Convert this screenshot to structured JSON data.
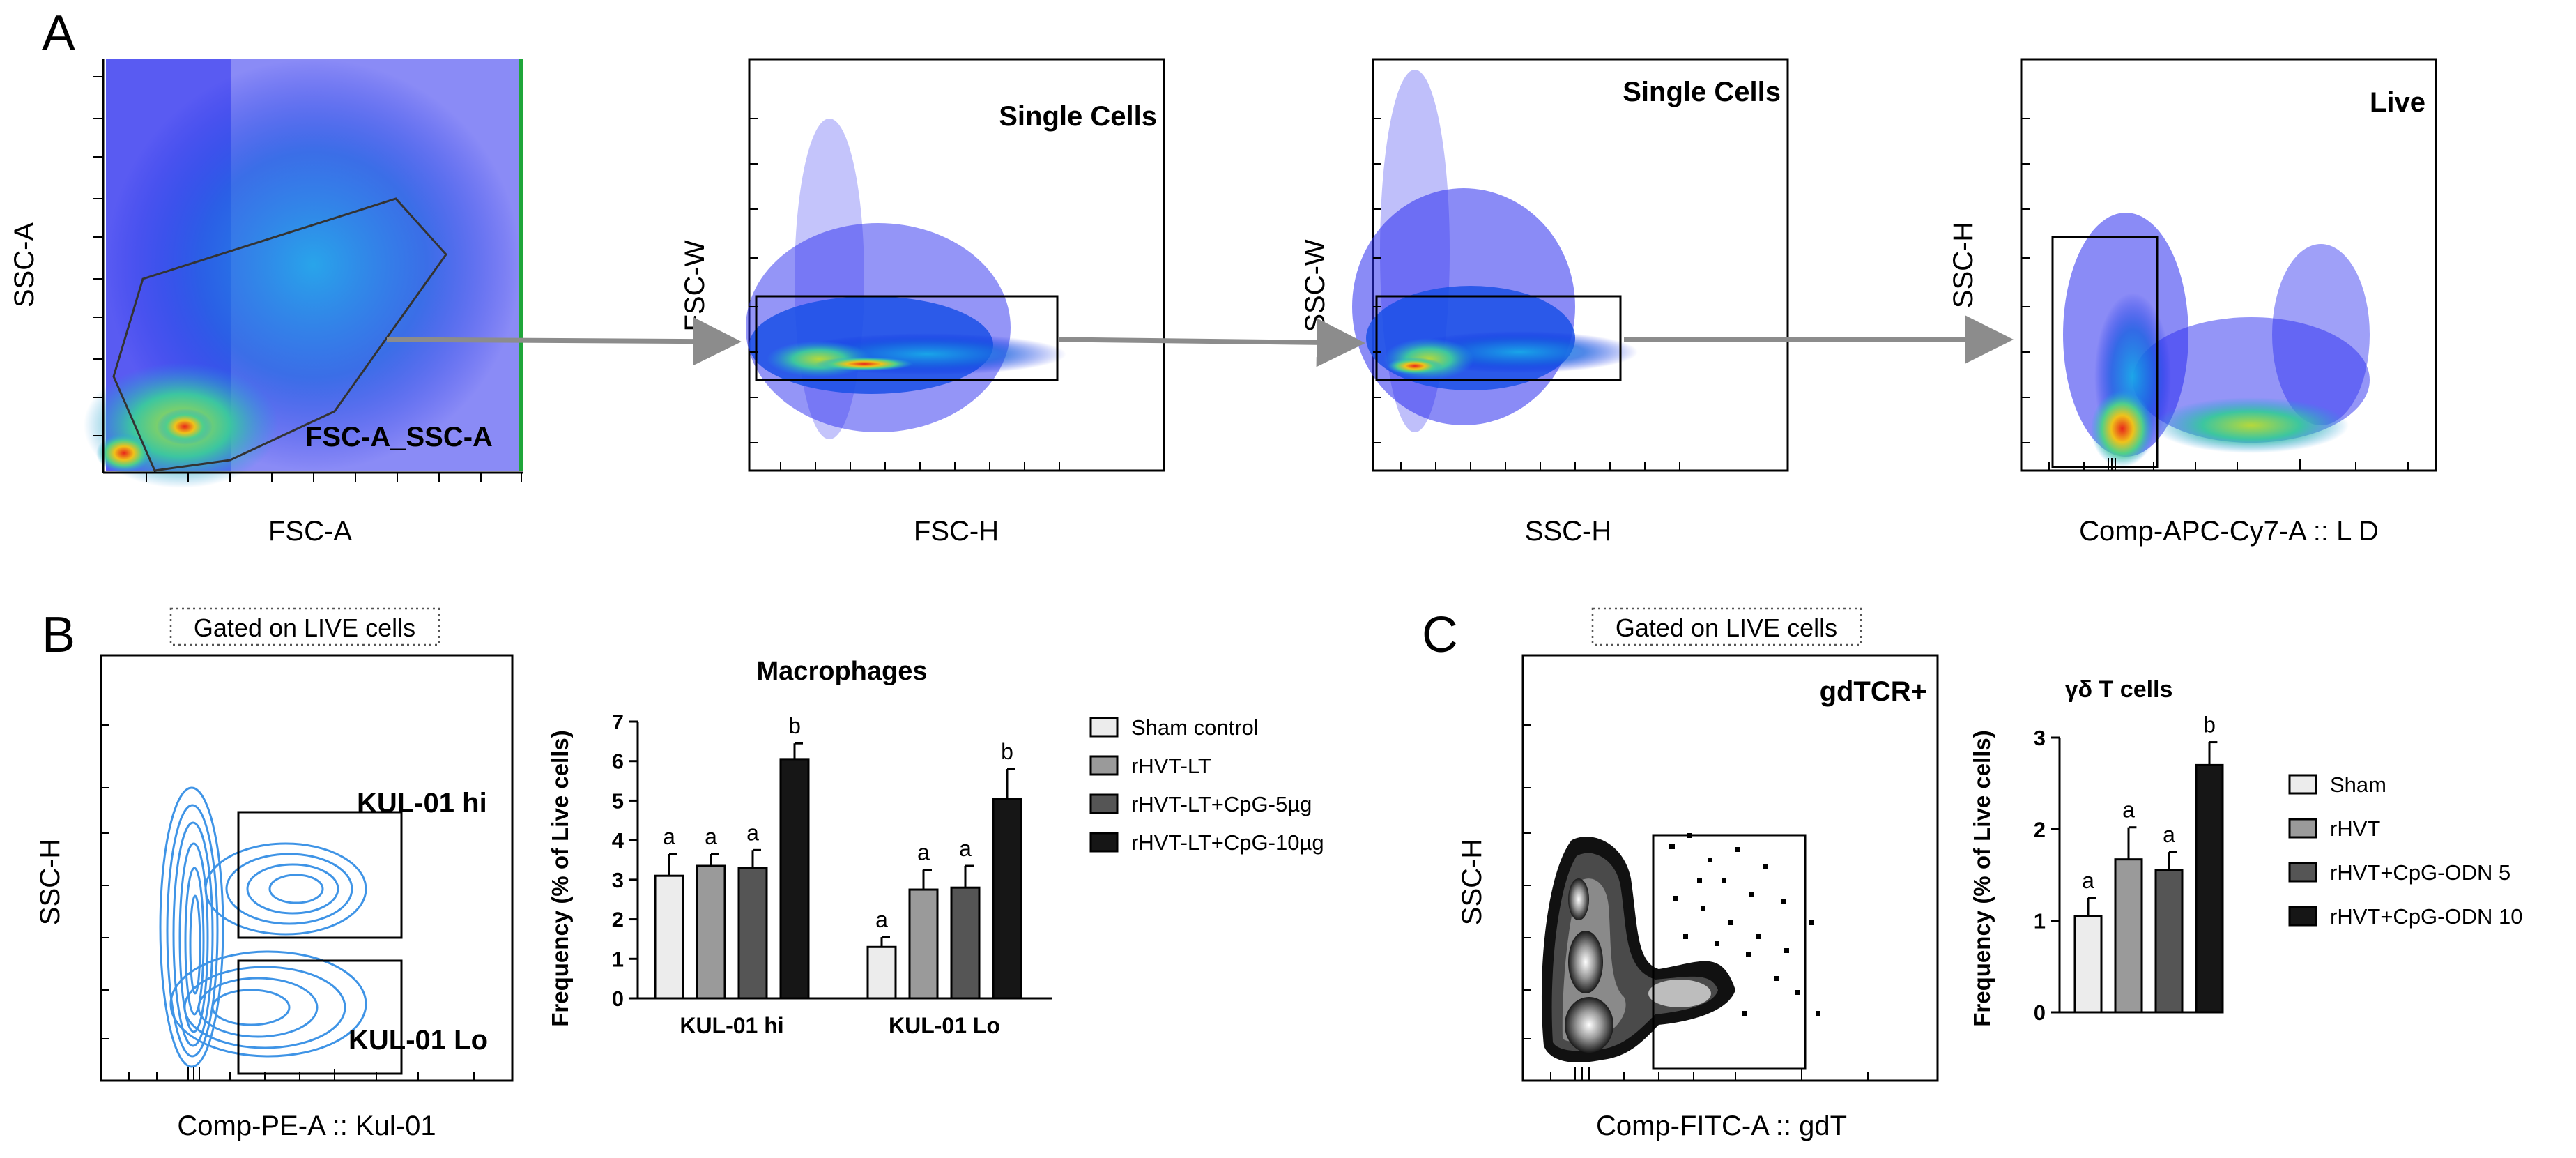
{
  "panel_letters": {
    "a": "A",
    "b": "B",
    "c": "C"
  },
  "panel_a": {
    "plots": [
      {
        "xlabel": "FSC-A",
        "ylabel": "SSC-A",
        "gate_label": "FSC-A_SSC-A"
      },
      {
        "xlabel": "FSC-H",
        "ylabel": "FSC-W",
        "gate_label": "Single Cells"
      },
      {
        "xlabel": "SSC-H",
        "ylabel": "SSC-W",
        "gate_label": "Single Cells"
      },
      {
        "xlabel": "Comp-APC-Cy7-A :: L D",
        "ylabel": "SSC-H",
        "gate_label": "Live"
      }
    ]
  },
  "panel_b": {
    "gated_on": "Gated on LIVE cells",
    "xlabel": "Comp-PE-A :: Kul-01",
    "ylabel": "SSC-H",
    "gate_hi": "KUL-01 hi",
    "gate_lo": "KUL-01 Lo"
  },
  "panel_c": {
    "gated_on": "Gated on LIVE cells",
    "xlabel": "Comp-FITC-A :: gdT",
    "ylabel": "SSC-H",
    "gate_label": "gdTCR+"
  },
  "colors": {
    "group1": "#ececec",
    "group2": "#9a9a9a",
    "group3": "#555555",
    "group4": "#161616",
    "arrow": "#8c8c8c",
    "contour": "#3f94e6"
  },
  "chart_data": [
    {
      "type": "bar",
      "title": "Macrophages",
      "xlabel": "",
      "ylabel": "Frequency (% of Live cells)",
      "ylim": [
        0,
        7
      ],
      "yticks": [
        "0",
        "1",
        "2",
        "3",
        "4",
        "5",
        "6",
        "7"
      ],
      "categories": [
        "KUL-01 hi",
        "KUL-01 Lo"
      ],
      "series": [
        {
          "name": "Sham control",
          "values": [
            3.1,
            1.3
          ],
          "errors": [
            0.55,
            0.25
          ],
          "letters": [
            "a",
            "a"
          ]
        },
        {
          "name": "rHVT-LT",
          "values": [
            3.35,
            2.75
          ],
          "errors": [
            0.3,
            0.5
          ],
          "letters": [
            "a",
            "a"
          ]
        },
        {
          "name": "rHVT-LT+CpG-5µg",
          "values": [
            3.3,
            2.8
          ],
          "errors": [
            0.45,
            0.55
          ],
          "letters": [
            "a",
            "a"
          ]
        },
        {
          "name": "rHVT-LT+CpG-10µg",
          "values": [
            6.05,
            5.05
          ],
          "errors": [
            0.4,
            0.75
          ],
          "letters": [
            "b",
            "b"
          ]
        }
      ]
    },
    {
      "type": "bar",
      "title": "γδ T cells",
      "xlabel": "",
      "ylabel": "Frequency (% of Live cells)",
      "ylim": [
        0,
        3
      ],
      "yticks": [
        "0",
        "1",
        "2",
        "3"
      ],
      "categories": [
        ""
      ],
      "series": [
        {
          "name": "Sham",
          "values": [
            1.05
          ],
          "errors": [
            0.2
          ],
          "letters": [
            "a"
          ]
        },
        {
          "name": "rHVT",
          "values": [
            1.67
          ],
          "errors": [
            0.35
          ],
          "letters": [
            "a"
          ]
        },
        {
          "name": "rHVT+CpG-ODN 5",
          "values": [
            1.55
          ],
          "errors": [
            0.2
          ],
          "letters": [
            "a"
          ]
        },
        {
          "name": "rHVT+CpG-ODN 10",
          "values": [
            2.7
          ],
          "errors": [
            0.25
          ],
          "letters": [
            "b"
          ]
        }
      ]
    }
  ]
}
